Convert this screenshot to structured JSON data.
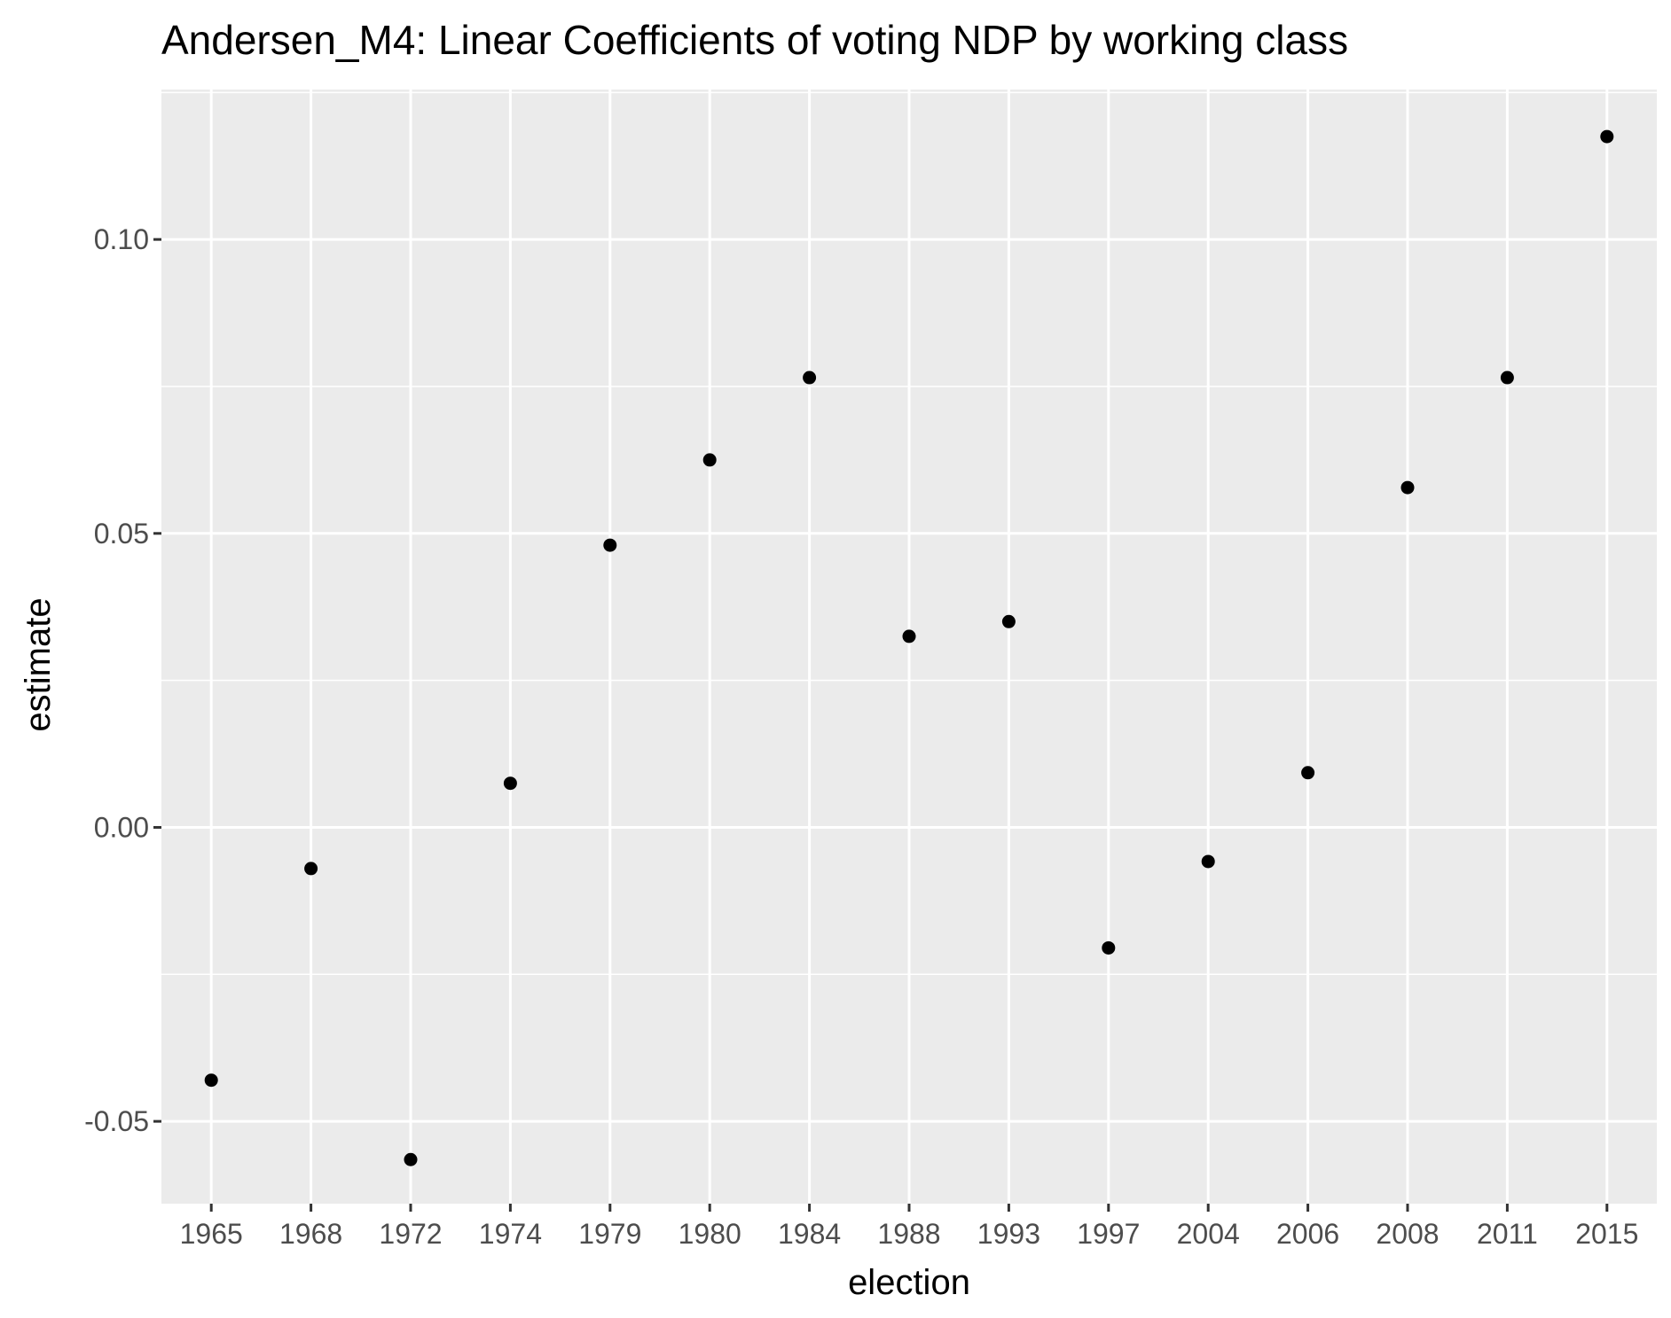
{
  "chart_data": {
    "type": "scatter",
    "title": "Andersen_M4: Linear Coefficients of voting NDP by working class",
    "xlabel": "election",
    "ylabel": "estimate",
    "categories": [
      "1965",
      "1968",
      "1972",
      "1974",
      "1979",
      "1980",
      "1984",
      "1988",
      "1993",
      "1997",
      "2004",
      "2006",
      "2008",
      "2011",
      "2015"
    ],
    "values": [
      -0.043,
      -0.007,
      -0.0565,
      0.0075,
      0.048,
      0.0625,
      0.0765,
      0.0325,
      0.035,
      -0.0205,
      -0.0058,
      0.0093,
      0.0578,
      0.0765,
      0.1175
    ],
    "ylim": [
      -0.064,
      0.1255
    ],
    "yticks": [
      -0.05,
      0.0,
      0.05,
      0.1
    ],
    "ytick_labels": [
      "-0.05",
      "0.00",
      "0.05",
      "0.10"
    ],
    "grid": true,
    "panel_color": "#ebebeb",
    "grid_color": "#ffffff",
    "point_color": "#000000"
  }
}
